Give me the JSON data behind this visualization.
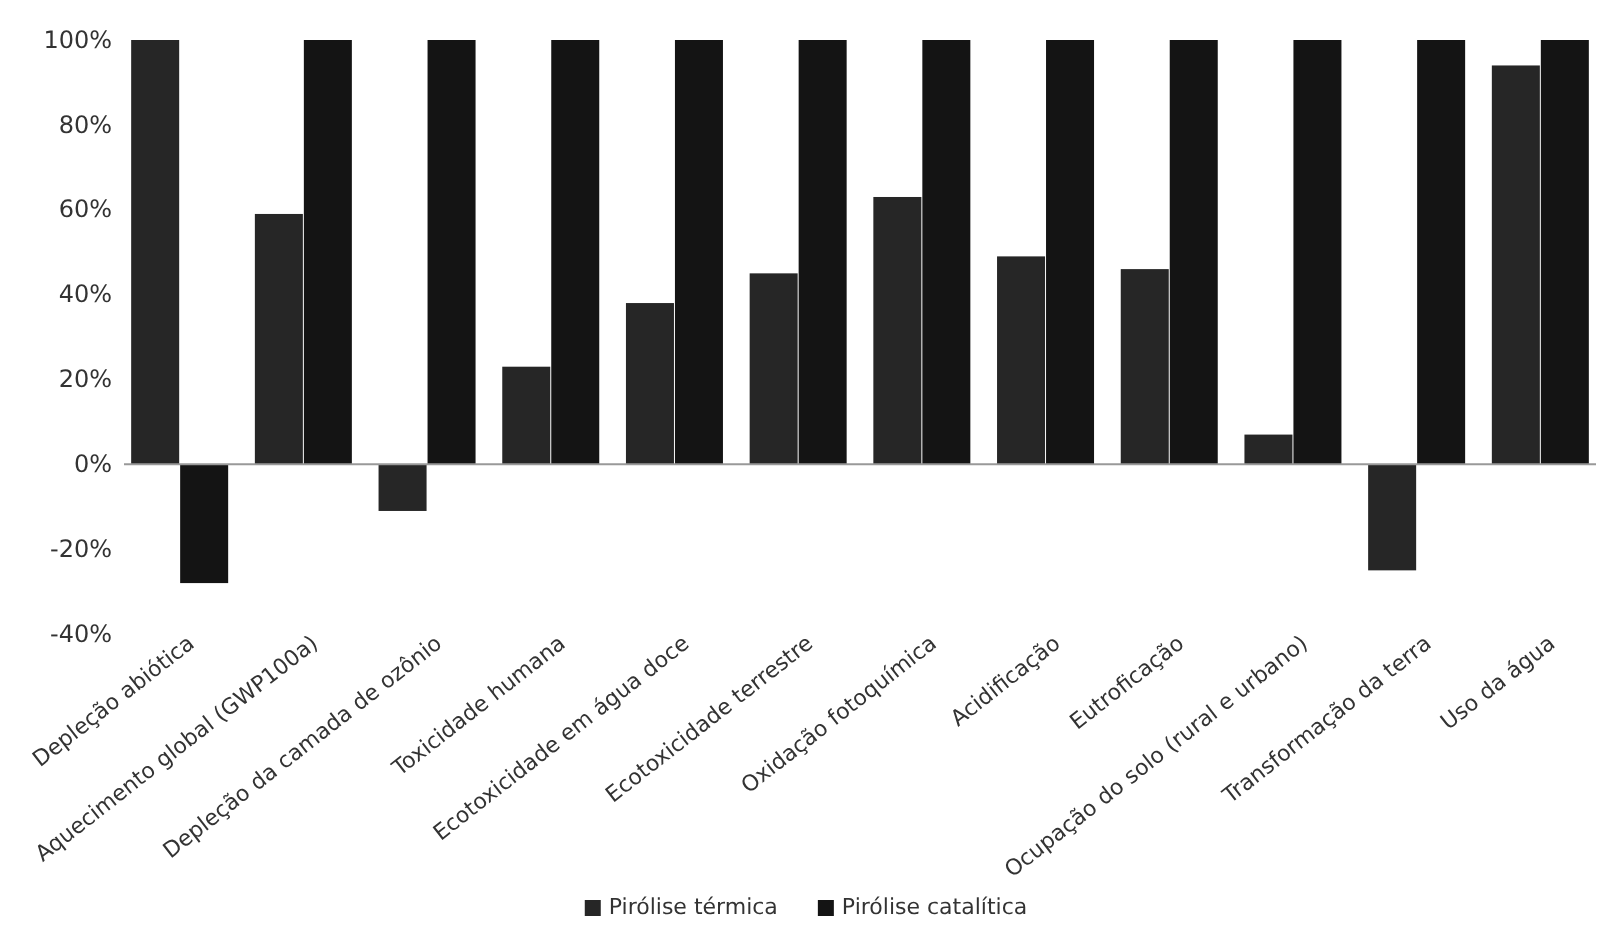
{
  "chart_data": {
    "type": "bar",
    "categories": [
      "Depleção abiótica",
      "Aquecimento global (GWP100a)",
      "Depleção da camada de ozônio",
      "Toxicidade humana",
      "Ecotoxicidade em água doce",
      "Ecotoxicidade terrestre",
      "Oxidação fotoquímica",
      "Acidificação",
      "Eutroficação",
      "Ocupação do solo (rural e urbano)",
      "Transformação da terra",
      "Uso da água"
    ],
    "series": [
      {
        "name": "Pirólise térmica",
        "color": "#262626",
        "values": [
          100,
          59,
          -11,
          23,
          38,
          45,
          63,
          49,
          46,
          7,
          -25,
          94
        ]
      },
      {
        "name": "Pirólise catalítica",
        "color": "#141414",
        "values": [
          -28,
          100,
          100,
          100,
          100,
          100,
          100,
          100,
          100,
          100,
          100,
          100
        ]
      }
    ],
    "ylim": [
      -40,
      100
    ],
    "yticks": [
      {
        "value": -40,
        "label": "-40%"
      },
      {
        "value": -20,
        "label": "-20%"
      },
      {
        "value": 0,
        "label": "0%"
      },
      {
        "value": 20,
        "label": "20%"
      },
      {
        "value": 40,
        "label": "40%"
      },
      {
        "value": 60,
        "label": "60%"
      },
      {
        "value": 80,
        "label": "80%"
      },
      {
        "value": 100,
        "label": "100%"
      }
    ],
    "legend": "bottom"
  }
}
